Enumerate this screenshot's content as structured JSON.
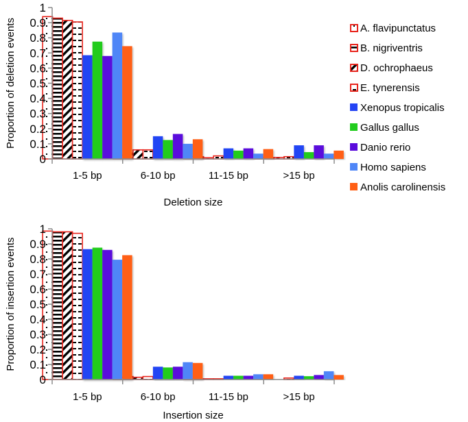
{
  "chart_data": [
    {
      "type": "bar",
      "title": "",
      "xlabel": "Deletion size",
      "ylabel": "Proportion of deletion events",
      "ylim": [
        0,
        1
      ],
      "yticks": [
        "0",
        "0.1",
        "0.2",
        "0.3",
        "0.4",
        "0.5",
        "0.6",
        "0.7",
        "0.8",
        "0.9",
        "1"
      ],
      "grid": false,
      "categories": [
        "1-5 bp",
        "6-10 bp",
        "11-15 bp",
        ">15 bp"
      ],
      "series": [
        {
          "name": "A. flavipunctatus",
          "values": [
            0.94,
            0.025,
            0.015,
            0.01
          ]
        },
        {
          "name": "B. nigriventris",
          "values": [
            0.93,
            0.04,
            0.015,
            0.008
          ]
        },
        {
          "name": "D. ochrophaeus",
          "values": [
            0.915,
            0.06,
            0.008,
            0.01
          ]
        },
        {
          "name": "E. tynerensis",
          "values": [
            0.905,
            0.06,
            0.02,
            0.015
          ]
        },
        {
          "name": "Xenopus tropicalis",
          "values": [
            0.685,
            0.15,
            0.07,
            0.09
          ]
        },
        {
          "name": "Gallus gallus",
          "values": [
            0.775,
            0.125,
            0.055,
            0.045
          ]
        },
        {
          "name": "Danio rerio",
          "values": [
            0.68,
            0.165,
            0.07,
            0.09
          ]
        },
        {
          "name": "Homo sapiens",
          "values": [
            0.835,
            0.1,
            0.035,
            0.035
          ]
        },
        {
          "name": "Anolis carolinensis",
          "values": [
            0.745,
            0.13,
            0.065,
            0.055
          ]
        }
      ]
    },
    {
      "type": "bar",
      "title": "",
      "xlabel": "Insertion size",
      "ylabel": "Proportion of insertion events",
      "ylim": [
        0,
        1
      ],
      "yticks": [
        "0",
        "0.1",
        "0.2",
        "0.3",
        "0.4",
        "0.5",
        "0.6",
        "0.7",
        "0.8",
        "0.9",
        "1"
      ],
      "grid": false,
      "categories": [
        "1-5 bp",
        "6-10 bp",
        "11-15 bp",
        ">15 bp"
      ],
      "series": [
        {
          "name": "A. flavipunctatus",
          "values": [
            0.985,
            0.015,
            0.003,
            0.0
          ]
        },
        {
          "name": "B. nigriventris",
          "values": [
            0.98,
            0.02,
            0.003,
            0.0
          ]
        },
        {
          "name": "D. ochrophaeus",
          "values": [
            0.98,
            0.015,
            0.005,
            0.0
          ]
        },
        {
          "name": "E. tynerensis",
          "values": [
            0.97,
            0.02,
            0.005,
            0.01
          ]
        },
        {
          "name": "Xenopus tropicalis",
          "values": [
            0.865,
            0.085,
            0.025,
            0.025
          ]
        },
        {
          "name": "Gallus gallus",
          "values": [
            0.875,
            0.08,
            0.025,
            0.022
          ]
        },
        {
          "name": "Danio rerio",
          "values": [
            0.86,
            0.085,
            0.025,
            0.03
          ]
        },
        {
          "name": "Homo sapiens",
          "values": [
            0.795,
            0.115,
            0.035,
            0.055
          ]
        },
        {
          "name": "Anolis carolinensis",
          "values": [
            0.825,
            0.11,
            0.035,
            0.03
          ]
        }
      ]
    }
  ],
  "legend": {
    "placement": "right",
    "items": [
      {
        "name": "A. flavipunctatus",
        "fill": "#ffffff",
        "stroke": "#e8241c",
        "pattern": "dots"
      },
      {
        "name": "B. nigriventris",
        "fill": "#ffffff",
        "stroke": "#e8241c",
        "pattern": "horizontal"
      },
      {
        "name": "D. ochrophaeus",
        "fill": "#ffffff",
        "stroke": "#e8241c",
        "pattern": "diagonal"
      },
      {
        "name": "E. tynerensis",
        "fill": "#ffffff",
        "stroke": "#e8241c",
        "pattern": "dashes"
      },
      {
        "name": "Xenopus tropicalis",
        "fill": "#2444f4",
        "stroke": "",
        "pattern": "solid"
      },
      {
        "name": "Gallus gallus",
        "fill": "#22cc1e",
        "stroke": "",
        "pattern": "solid"
      },
      {
        "name": "Danio rerio",
        "fill": "#5a0bdc",
        "stroke": "",
        "pattern": "solid"
      },
      {
        "name": "Homo sapiens",
        "fill": "#4f86f7",
        "stroke": "",
        "pattern": "solid"
      },
      {
        "name": "Anolis carolinensis",
        "fill": "#ff5f14",
        "stroke": "",
        "pattern": "solid"
      }
    ]
  },
  "colors": {
    "axis": "#8c8c8c",
    "outline": "#e8241c"
  }
}
